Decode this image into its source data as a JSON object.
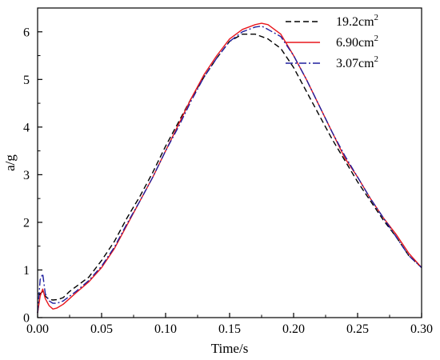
{
  "chart_data": {
    "type": "line",
    "xlabel": "Time/s",
    "ylabel": "a/g",
    "xlim": [
      0,
      0.3
    ],
    "ylim": [
      0,
      6.5
    ],
    "x_ticks": [
      "0.00",
      "0.05",
      "0.10",
      "0.15",
      "0.20",
      "0.25",
      "0.30"
    ],
    "y_ticks": [
      "0",
      "1",
      "2",
      "3",
      "4",
      "5",
      "6"
    ],
    "legend_position": "top-right",
    "grid": false,
    "series": [
      {
        "name": "19.2cm",
        "name_sup": "2",
        "color": "#000000",
        "dash": "7,4",
        "x": [
          0,
          0.002,
          0.004,
          0.006,
          0.009,
          0.012,
          0.016,
          0.02,
          0.025,
          0.03,
          0.04,
          0.05,
          0.06,
          0.07,
          0.08,
          0.09,
          0.1,
          0.11,
          0.12,
          0.13,
          0.14,
          0.15,
          0.16,
          0.17,
          0.18,
          0.19,
          0.2,
          0.21,
          0.22,
          0.23,
          0.24,
          0.25,
          0.26,
          0.27,
          0.28,
          0.29,
          0.3
        ],
        "y": [
          0.1,
          0.5,
          0.55,
          0.45,
          0.38,
          0.37,
          0.38,
          0.42,
          0.55,
          0.65,
          0.85,
          1.2,
          1.6,
          2.1,
          2.55,
          3.05,
          3.6,
          4.1,
          4.6,
          5.05,
          5.45,
          5.8,
          5.95,
          5.95,
          5.85,
          5.65,
          5.25,
          4.75,
          4.25,
          3.75,
          3.3,
          2.85,
          2.45,
          2.05,
          1.7,
          1.3,
          1.05
        ]
      },
      {
        "name": "6.90cm",
        "name_sup": "2",
        "color": "#e8161c",
        "dash": "",
        "x": [
          0,
          0.002,
          0.004,
          0.006,
          0.009,
          0.012,
          0.015,
          0.02,
          0.025,
          0.03,
          0.04,
          0.05,
          0.06,
          0.07,
          0.08,
          0.09,
          0.1,
          0.11,
          0.12,
          0.13,
          0.14,
          0.15,
          0.16,
          0.17,
          0.175,
          0.18,
          0.19,
          0.2,
          0.21,
          0.22,
          0.23,
          0.24,
          0.25,
          0.26,
          0.27,
          0.28,
          0.29,
          0.3
        ],
        "y": [
          0.1,
          0.45,
          0.6,
          0.4,
          0.25,
          0.18,
          0.2,
          0.28,
          0.4,
          0.52,
          0.75,
          1.05,
          1.45,
          1.95,
          2.45,
          2.95,
          3.5,
          4.05,
          4.6,
          5.1,
          5.5,
          5.85,
          6.05,
          6.15,
          6.18,
          6.15,
          5.95,
          5.5,
          5.0,
          4.45,
          3.9,
          3.35,
          2.95,
          2.5,
          2.1,
          1.75,
          1.35,
          1.05
        ]
      },
      {
        "name": "3.07cm",
        "name_sup": "2",
        "color": "#1f1f9e",
        "dash": "9,3,2,3",
        "x": [
          0,
          0.002,
          0.004,
          0.006,
          0.009,
          0.012,
          0.015,
          0.02,
          0.025,
          0.03,
          0.04,
          0.05,
          0.06,
          0.07,
          0.08,
          0.09,
          0.1,
          0.11,
          0.12,
          0.13,
          0.14,
          0.15,
          0.16,
          0.17,
          0.175,
          0.18,
          0.19,
          0.2,
          0.21,
          0.22,
          0.23,
          0.24,
          0.25,
          0.26,
          0.27,
          0.28,
          0.29,
          0.3
        ],
        "y": [
          0.1,
          0.8,
          0.92,
          0.5,
          0.35,
          0.3,
          0.3,
          0.35,
          0.45,
          0.55,
          0.78,
          1.08,
          1.48,
          1.98,
          2.45,
          2.95,
          3.5,
          4.0,
          4.55,
          5.05,
          5.45,
          5.8,
          6.0,
          6.1,
          6.12,
          6.05,
          5.9,
          5.5,
          5.0,
          4.45,
          3.9,
          3.4,
          2.95,
          2.5,
          2.1,
          1.7,
          1.3,
          1.05
        ]
      }
    ]
  }
}
